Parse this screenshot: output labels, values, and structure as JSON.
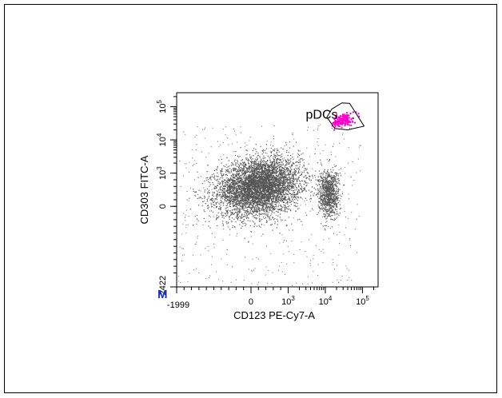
{
  "chart_data": {
    "type": "scatter",
    "title": "",
    "xlabel": "CD123 PE-Cy7-A",
    "ylabel": "CD303 FITC-A",
    "x_scale": "biexponential",
    "y_scale": "biexponential",
    "xlim": [
      -1999,
      262144
    ],
    "ylim": [
      -2422,
      262144
    ],
    "x_ticks": [
      {
        "value": -1999,
        "label": "-1999"
      },
      {
        "value": 0,
        "label": "0"
      },
      {
        "value": 1000,
        "label": "10",
        "exp": "3"
      },
      {
        "value": 10000,
        "label": "10",
        "exp": "4"
      },
      {
        "value": 100000,
        "label": "10",
        "exp": "5"
      }
    ],
    "y_ticks": [
      {
        "value": -2422,
        "label": "-2422"
      },
      {
        "value": 0,
        "label": "0"
      },
      {
        "value": 1000,
        "label": "10",
        "exp": "3"
      },
      {
        "value": 10000,
        "label": "10",
        "exp": "4"
      },
      {
        "value": 100000,
        "label": "10",
        "exp": "5"
      }
    ],
    "gate": {
      "name": "pDCs",
      "color": "#ff00cc",
      "vertices": [
        [
          11000,
          48000
        ],
        [
          15000,
          85000
        ],
        [
          28000,
          130000
        ],
        [
          45000,
          125000
        ],
        [
          110000,
          26000
        ],
        [
          40000,
          20000
        ],
        [
          18000,
          22000
        ]
      ]
    },
    "populations": [
      {
        "description": "main population",
        "x_center": 200,
        "y_center": 600,
        "color": "#555555"
      },
      {
        "description": "CD123 high population",
        "x_center": 12000,
        "y_center": 400,
        "color": "#555555"
      },
      {
        "description": "pDCs",
        "x_center": 30000,
        "y_center": 40000,
        "color": "#ff00cc"
      }
    ],
    "grid": false,
    "legend": "none"
  },
  "corner_marker": {
    "text": "M",
    "color": "#1a33cc"
  }
}
